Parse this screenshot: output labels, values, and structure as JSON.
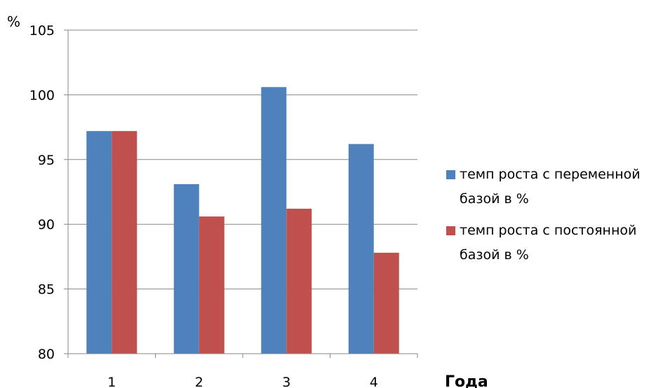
{
  "chart_data": {
    "type": "bar",
    "categories": [
      "1",
      "2",
      "3",
      "4"
    ],
    "series": [
      {
        "name": "темп роста с переменной базой в %",
        "values": [
          97.2,
          93.1,
          100.6,
          96.2
        ],
        "color": "#4f81bd"
      },
      {
        "name": "темп роста с постоянной базой в %",
        "values": [
          97.2,
          90.6,
          91.2,
          87.8
        ],
        "color": "#c0504d"
      }
    ],
    "ylabel": "%",
    "xlabel": "Года",
    "ylim": [
      80,
      105
    ],
    "yticks": [
      80,
      85,
      90,
      95,
      100,
      105
    ],
    "grid": true,
    "legend_position": "right"
  }
}
